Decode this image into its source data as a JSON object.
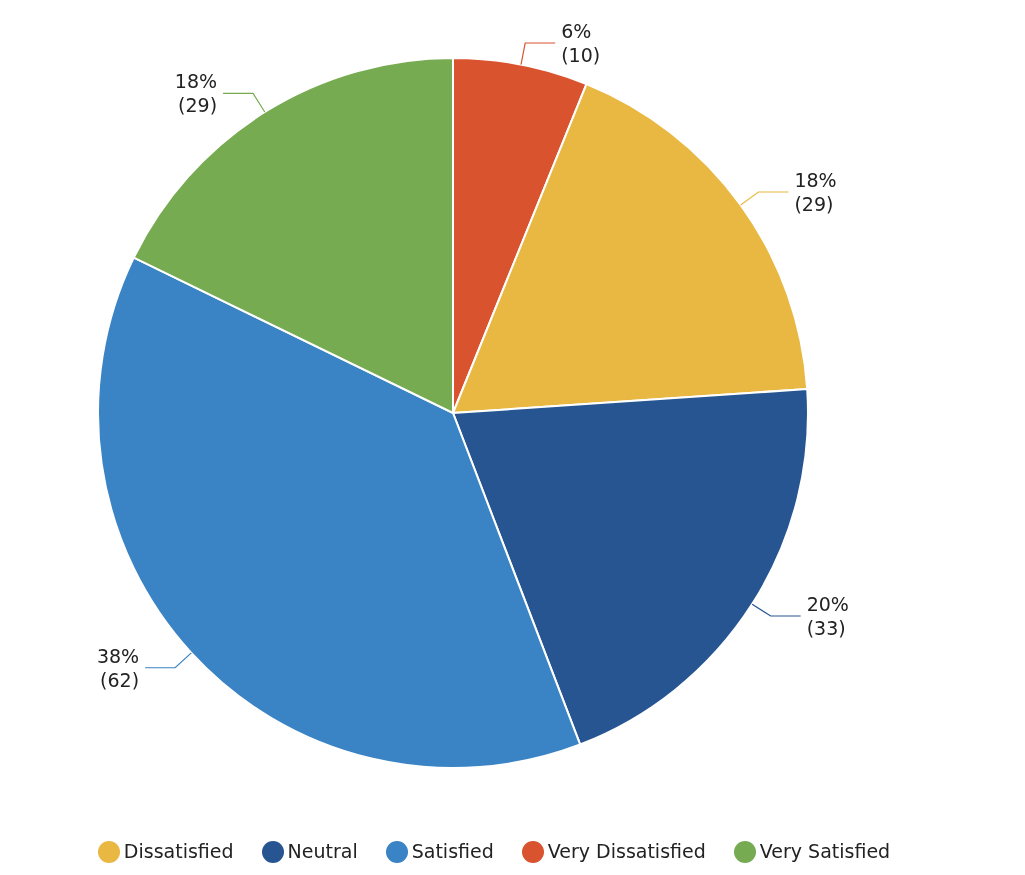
{
  "chart_data": {
    "type": "pie",
    "categories": [
      "Very Dissatisfied",
      "Dissatisfied",
      "Neutral",
      "Satisfied",
      "Very Satisfied"
    ],
    "values": [
      10,
      29,
      33,
      62,
      29
    ],
    "colors": [
      "#d9532f",
      "#e8b842",
      "#265592",
      "#3a83c4",
      "#77ab51"
    ],
    "value_labels": [
      "6%\n(10)",
      "18%\n(29)",
      "20%\n(33)",
      "38%\n(62)",
      "18%\n(29)"
    ],
    "legend": "bottom"
  }
}
